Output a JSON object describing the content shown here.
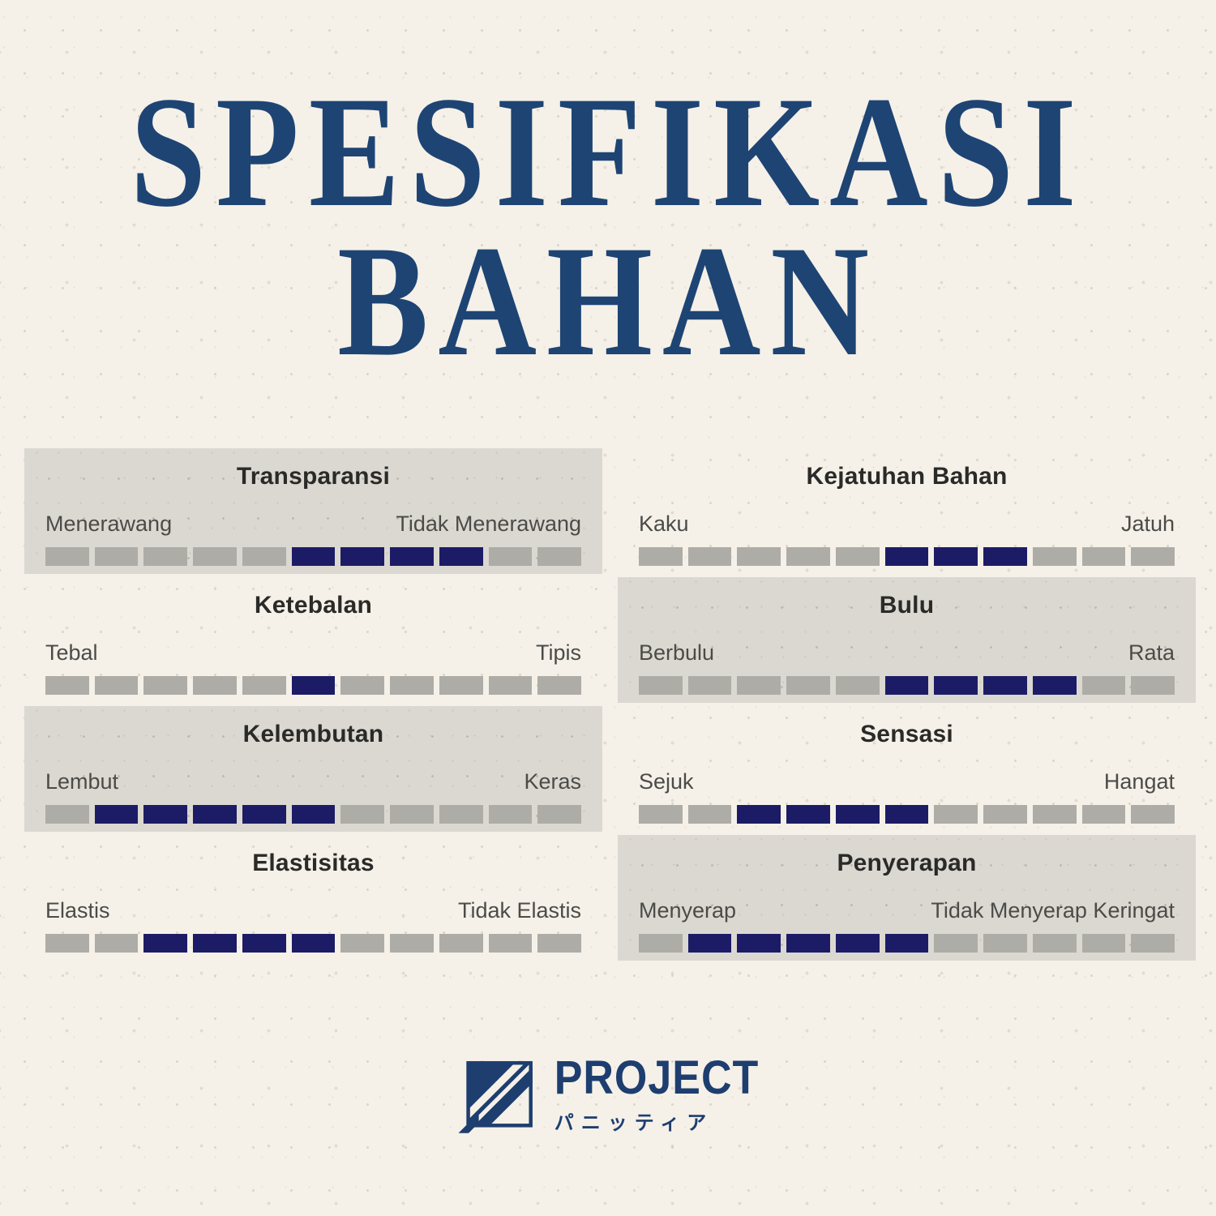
{
  "title": {
    "line1": "SPESIFIKASI",
    "line2": "BAHAN"
  },
  "colors": {
    "background": "#f5f1e8",
    "panel_background": "#dbd8d1",
    "segment_gray": "#aeaca7",
    "segment_filled_navy": "#1c1c66",
    "title_navy": "#1e4474",
    "heading_text": "#2a2a28",
    "endpoint_label_text": "#4b4b48",
    "logo_navy": "#1e3e70"
  },
  "chart_data": {
    "type": "bar",
    "title": "SPESIFIKASI BAHAN",
    "scale_points": 11,
    "legend_position": "none",
    "grid": false,
    "attributes": [
      {
        "name": "Transparansi",
        "left_label": "Menerawang",
        "right_label": "Tidak Menerawang",
        "filled_segments": [
          6,
          7,
          8,
          9
        ],
        "panel": true
      },
      {
        "name": "Ketebalan",
        "left_label": "Tebal",
        "right_label": "Tipis",
        "filled_segments": [
          6
        ],
        "panel": false
      },
      {
        "name": "Kelembutan",
        "left_label": "Lembut",
        "right_label": "Keras",
        "filled_segments": [
          2,
          3,
          4,
          5,
          6
        ],
        "panel": true
      },
      {
        "name": "Elastisitas",
        "left_label": "Elastis",
        "right_label": "Tidak Elastis",
        "filled_segments": [
          3,
          4,
          5,
          6
        ],
        "panel": false
      },
      {
        "name": "Kejatuhan Bahan",
        "left_label": "Kaku",
        "right_label": "Jatuh",
        "filled_segments": [
          6,
          7,
          8
        ],
        "panel": false
      },
      {
        "name": "Bulu",
        "left_label": "Berbulu",
        "right_label": "Rata",
        "filled_segments": [
          6,
          7,
          8,
          9
        ],
        "panel": true
      },
      {
        "name": "Sensasi",
        "left_label": "Sejuk",
        "right_label": "Hangat",
        "filled_segments": [
          3,
          4,
          5,
          6
        ],
        "panel": false
      },
      {
        "name": "Penyerapan",
        "left_label": "Menyerap",
        "right_label": "Tidak Menyerap Keringat",
        "filled_segments": [
          2,
          3,
          4,
          5,
          6
        ],
        "panel": true
      }
    ]
  },
  "logo": {
    "name": "PROJECT",
    "subtext": "パニッティア"
  }
}
